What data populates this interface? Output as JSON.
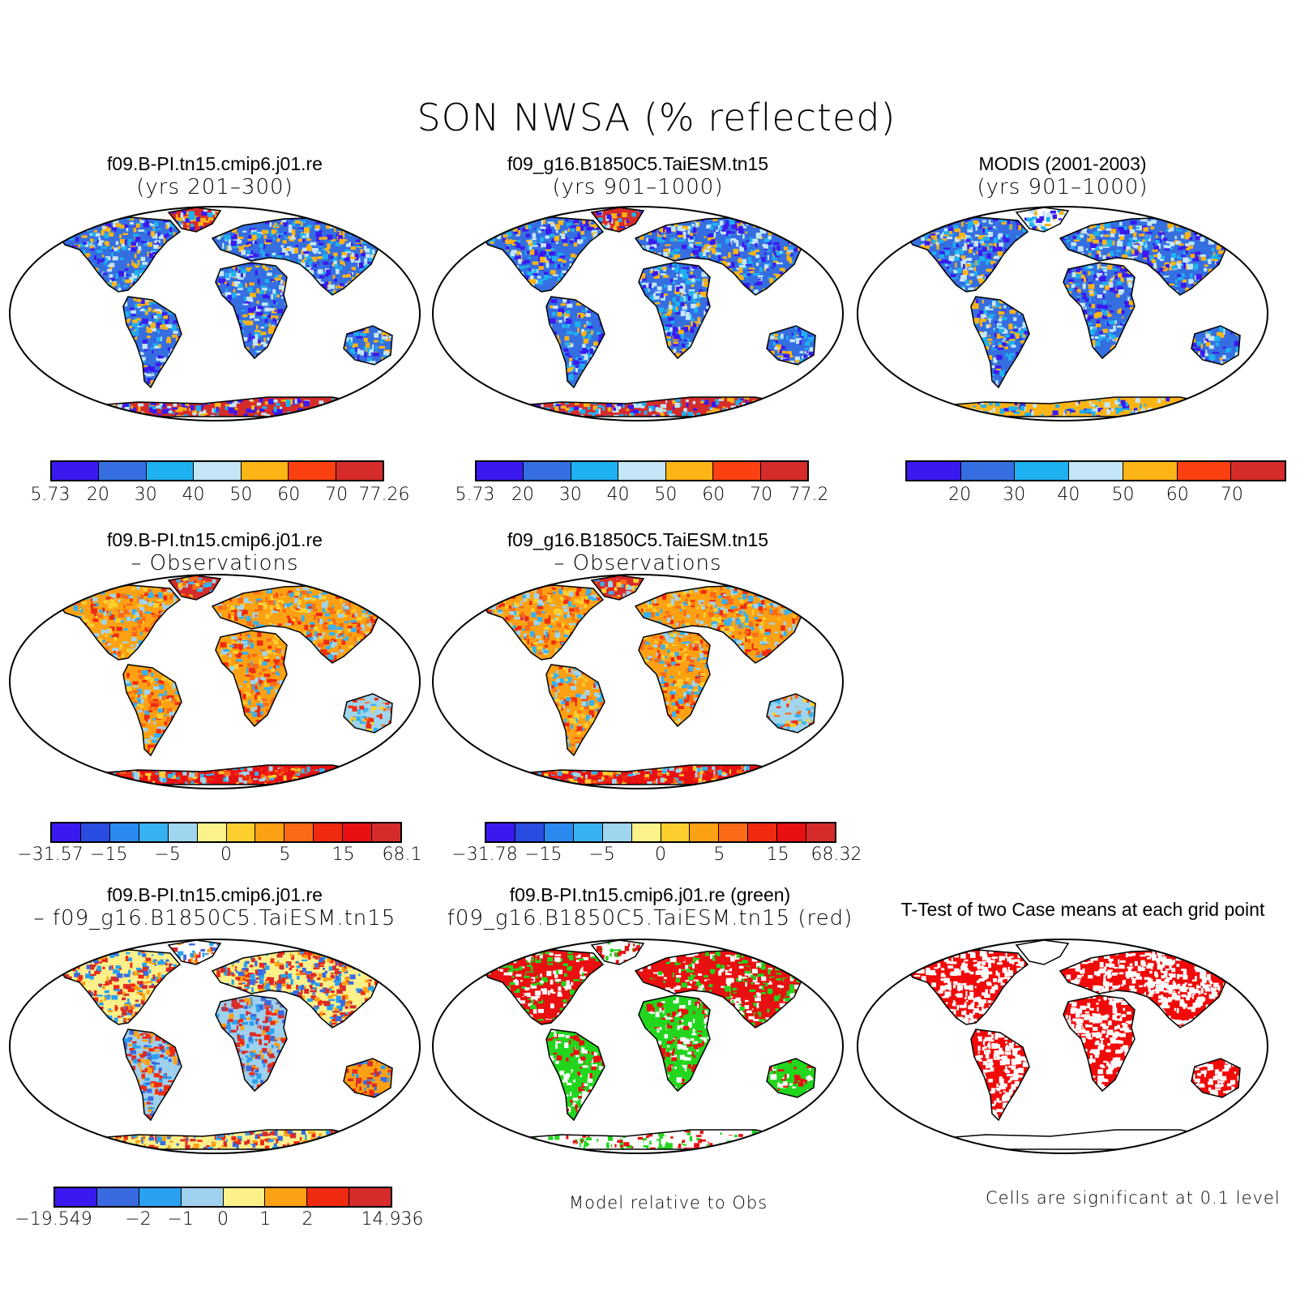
{
  "title": "SON NWSA (% reflected)",
  "panels": {
    "p1": {
      "line1": "f09.B-PI.tn15.cmip6.j01.re",
      "line2": "(yrs 201–300)"
    },
    "p2": {
      "line1": "f09_g16.B1850C5.TaiESM.tn15",
      "line2": "(yrs 901–1000)"
    },
    "p3": {
      "line1": "MODIS (2001-2003)",
      "line2": "(yrs 901–1000)"
    },
    "p4": {
      "line1": "f09.B-PI.tn15.cmip6.j01.re",
      "line2": "– Observations"
    },
    "p5": {
      "line1": "f09_g16.B1850C5.TaiESM.tn15",
      "line2": "– Observations"
    },
    "p7": {
      "line1": "f09.B-PI.tn15.cmip6.j01.re",
      "line2": "– f09_g16.B1850C5.TaiESM.tn15"
    },
    "p8": {
      "line1": "f09.B-PI.tn15.cmip6.j01.re (green)",
      "line2": "f09_g16.B1850C5.TaiESM.tn15 (red)"
    },
    "p9": {
      "line1": "T-Test of two Case means at each grid point",
      "line2": ""
    }
  },
  "colorbars": {
    "cb1": {
      "labels": [
        "5.73",
        "20",
        "30",
        "40",
        "50",
        "60",
        "70",
        "77.26"
      ]
    },
    "cb2": {
      "labels": [
        "5.73",
        "20",
        "30",
        "40",
        "50",
        "60",
        "70",
        "77.2"
      ]
    },
    "cb3": {
      "labels": [
        "20",
        "30",
        "40",
        "50",
        "60",
        "70"
      ]
    },
    "cb4": {
      "labels": [
        "−31.57",
        "−15",
        "−5",
        "0",
        "5",
        "15",
        "68.1"
      ]
    },
    "cb5": {
      "labels": [
        "−31.78",
        "−15",
        "−5",
        "0",
        "5",
        "15",
        "68.32"
      ]
    },
    "cb7": {
      "labels": [
        "−19.549",
        "−2",
        "−1",
        "0",
        "1",
        "2",
        "14.936"
      ]
    }
  },
  "notes": {
    "model_obs": "Model relative to Obs",
    "significance": "Cells are significant at 0.1 level"
  },
  "palettes": {
    "mean": [
      "#3a19f0",
      "#356ee0",
      "#1eb1f1",
      "#c4e6f6",
      "#fdb415",
      "#fc4010",
      "#d62b2b"
    ],
    "diff": [
      "#3a19f0",
      "#2a4ce0",
      "#2a8af0",
      "#37b1f1",
      "#9fd5ee",
      "#fbf38a",
      "#fccf2e",
      "#fca113",
      "#fb6a16",
      "#f02a10",
      "#e81010",
      "#d62b2b"
    ],
    "casediff": [
      "#3a19f0",
      "#3a6ae0",
      "#2aa0f0",
      "#9fd0ee",
      "#fbf08a",
      "#fca113",
      "#f02a10",
      "#d62b2b"
    ]
  }
}
